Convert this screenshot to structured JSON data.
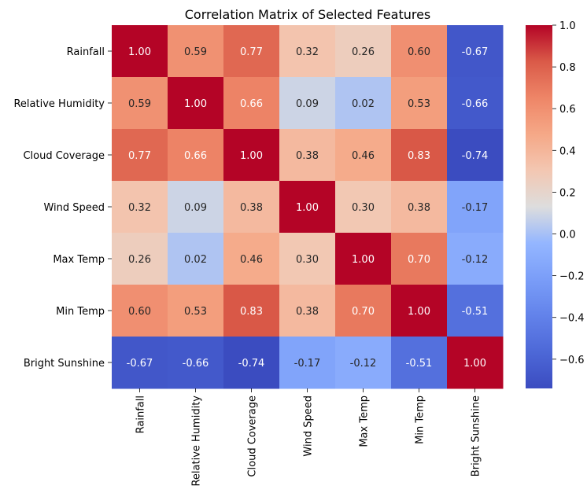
{
  "chart_data": {
    "type": "heatmap",
    "title": "Correlation Matrix of Selected Features",
    "xlabel": "",
    "ylabel": "",
    "row_labels": [
      "Rainfall",
      "Relative Humidity",
      "Cloud Coverage",
      "Wind Speed",
      "Max Temp",
      "Min Temp",
      "Bright Sunshine"
    ],
    "col_labels": [
      "Rainfall",
      "Relative Humidity",
      "Cloud Coverage",
      "Wind Speed",
      "Max Temp",
      "Min Temp",
      "Bright Sunshine"
    ],
    "values": [
      [
        1.0,
        0.59,
        0.77,
        0.32,
        0.26,
        0.6,
        -0.67
      ],
      [
        0.59,
        1.0,
        0.66,
        0.09,
        0.02,
        0.53,
        -0.66
      ],
      [
        0.77,
        0.66,
        1.0,
        0.38,
        0.46,
        0.83,
        -0.74
      ],
      [
        0.32,
        0.09,
        0.38,
        1.0,
        0.3,
        0.38,
        -0.17
      ],
      [
        0.26,
        0.02,
        0.46,
        0.3,
        1.0,
        0.7,
        -0.12
      ],
      [
        0.6,
        0.53,
        0.83,
        0.38,
        0.7,
        1.0,
        -0.51
      ],
      [
        -0.67,
        -0.66,
        -0.74,
        -0.17,
        -0.12,
        -0.51,
        1.0
      ]
    ],
    "value_format": "2 decimals",
    "colormap": "coolwarm",
    "colorbar": {
      "range": [
        -0.74,
        1.0
      ],
      "ticks": [
        "1.0",
        "0.8",
        "0.6",
        "0.4",
        "0.2",
        "0.0",
        "−0.2",
        "−0.4",
        "−0.6"
      ]
    }
  }
}
